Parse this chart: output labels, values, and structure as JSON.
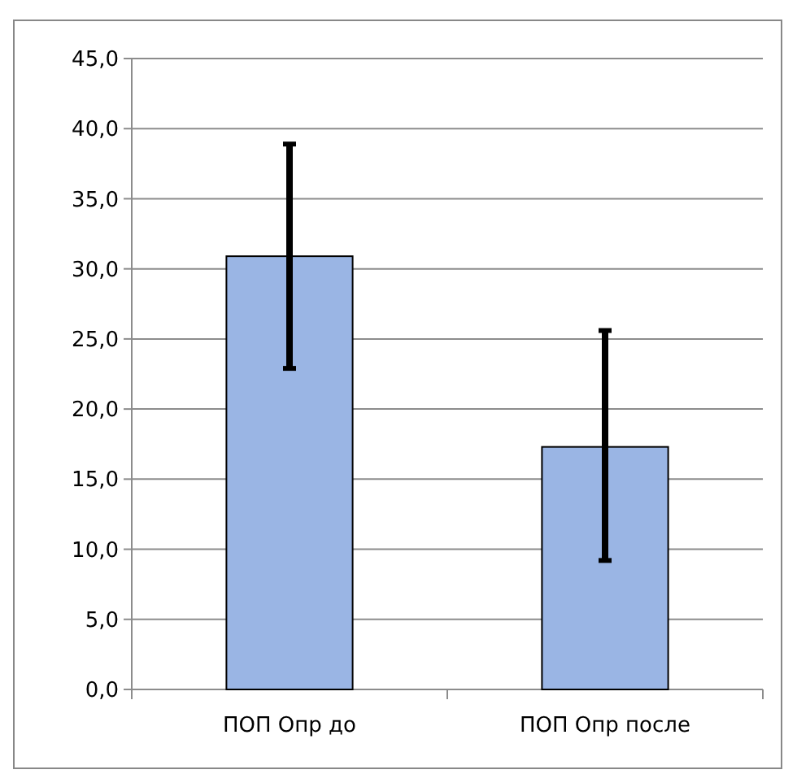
{
  "chart_data": {
    "type": "bar",
    "categories": [
      "ПОП Опр до",
      "ПОП Опр после"
    ],
    "values": [
      30.9,
      17.3
    ],
    "errors": [
      [
        22.9,
        38.9
      ],
      [
        9.2,
        25.6
      ]
    ],
    "color": "#9ab5e4",
    "ylim": [
      0,
      45
    ],
    "yticks": [
      {
        "value": 0,
        "label": "0,0"
      },
      {
        "value": 5,
        "label": "5,0"
      },
      {
        "value": 10,
        "label": "10,0"
      },
      {
        "value": 15,
        "label": "15,0"
      },
      {
        "value": 20,
        "label": "20,0"
      },
      {
        "value": 25,
        "label": "25,0"
      },
      {
        "value": 30,
        "label": "30,0"
      },
      {
        "value": 35,
        "label": "35,0"
      },
      {
        "value": 40,
        "label": "40,0"
      },
      {
        "value": 45,
        "label": "45,0"
      }
    ],
    "grid": "y"
  }
}
